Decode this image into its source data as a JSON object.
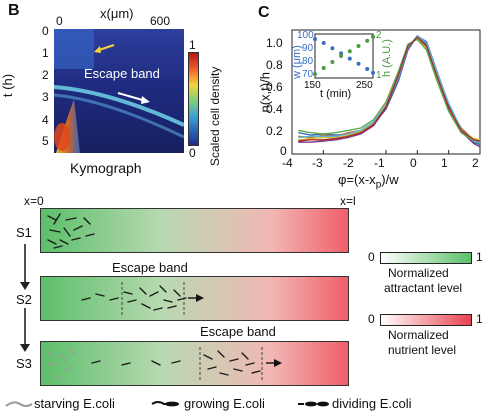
{
  "panel_b": {
    "letter": "B",
    "x_title": "x(μm)",
    "x_ticks": [
      "0",
      "600"
    ],
    "y_title": "t (h)",
    "y_ticks": [
      "0",
      "1",
      "2",
      "3",
      "4",
      "5"
    ],
    "annotation": "Escape band",
    "caption": "Kymograph",
    "colorbar_label": "Scaled cell density",
    "colorbar_ticks": [
      "1",
      "0"
    ]
  },
  "panel_c": {
    "letter": "C",
    "y_title": "n(x,t)/h",
    "x_title": "φ=(x-x",
    "x_title_sub": "p",
    "x_title_end": ")/w",
    "x_ticks": [
      "-4",
      "-3",
      "-2",
      "-1",
      "0",
      "1",
      "2"
    ],
    "y_ticks": [
      "1.0",
      "0.8",
      "0.6",
      "0.4",
      "0.2",
      "0"
    ],
    "inset": {
      "left_axis_title": "w (μm)",
      "left_ticks": [
        "100",
        "90",
        "80",
        "70"
      ],
      "right_axis_title": "h (A.U.)",
      "right_ticks": [
        "2",
        "1"
      ],
      "x_title": "t (min)",
      "x_ticks": [
        "150",
        "250"
      ]
    }
  },
  "schematic": {
    "x_start": "x=0",
    "x_end": "x=l",
    "stages": [
      "S1",
      "S2",
      "S3"
    ],
    "band_label_1": "Escape band",
    "band_label_2": "Escape band",
    "legend_attractant": {
      "min": "0",
      "max": "1",
      "label1": "Normalized",
      "label2": "attractant level",
      "color": "#5cbf6a"
    },
    "legend_nutrient": {
      "min": "0",
      "max": "1",
      "label1": "Normalized",
      "label2": "nutrient level",
      "color": "#e7434f"
    },
    "ecoli_legend": [
      "starving E.coli",
      "growing E.coli",
      "dividing E.coli"
    ]
  },
  "chart_data": {
    "type": "line",
    "xlabel": "φ=(x-xp)/w",
    "ylabel": "n(x,t)/h",
    "xlim": [
      -4,
      2
    ],
    "ylim": [
      0,
      1.05
    ],
    "x": [
      -3.8,
      -3.4,
      -3.0,
      -2.6,
      -2.2,
      -1.8,
      -1.4,
      -1.0,
      -0.6,
      -0.3,
      0.0,
      0.3,
      0.6,
      1.0,
      1.4,
      1.8,
      2.0
    ],
    "series": [
      {
        "color": "#3a6fc4",
        "values": [
          0.18,
          0.16,
          0.17,
          0.16,
          0.17,
          0.19,
          0.25,
          0.38,
          0.62,
          0.88,
          1.0,
          0.95,
          0.72,
          0.42,
          0.2,
          0.1,
          0.08
        ]
      },
      {
        "color": "#c9622a",
        "values": [
          0.15,
          0.14,
          0.16,
          0.15,
          0.18,
          0.2,
          0.27,
          0.4,
          0.66,
          0.9,
          0.99,
          0.92,
          0.7,
          0.4,
          0.22,
          0.12,
          0.1
        ]
      },
      {
        "color": "#e0b93a",
        "values": [
          0.12,
          0.13,
          0.14,
          0.14,
          0.16,
          0.19,
          0.26,
          0.42,
          0.68,
          0.92,
          0.98,
          0.9,
          0.66,
          0.38,
          0.2,
          0.13,
          0.12
        ]
      },
      {
        "color": "#7a3a8c",
        "values": [
          0.1,
          0.1,
          0.11,
          0.12,
          0.14,
          0.17,
          0.24,
          0.39,
          0.64,
          0.89,
          1.0,
          0.93,
          0.7,
          0.41,
          0.19,
          0.09,
          0.06
        ]
      },
      {
        "color": "#5aa84e",
        "values": [
          0.2,
          0.18,
          0.17,
          0.18,
          0.2,
          0.22,
          0.29,
          0.44,
          0.7,
          0.93,
          0.97,
          0.88,
          0.64,
          0.36,
          0.18,
          0.11,
          0.09
        ]
      },
      {
        "color": "#59b7d6",
        "values": [
          0.14,
          0.15,
          0.15,
          0.15,
          0.17,
          0.2,
          0.27,
          0.41,
          0.65,
          0.9,
          1.0,
          0.94,
          0.71,
          0.43,
          0.21,
          0.11,
          0.1
        ]
      },
      {
        "color": "#a8302c",
        "values": [
          0.11,
          0.12,
          0.12,
          0.13,
          0.15,
          0.18,
          0.25,
          0.4,
          0.67,
          0.91,
          0.99,
          0.91,
          0.68,
          0.39,
          0.2,
          0.12,
          0.11
        ]
      }
    ],
    "inset": {
      "type": "scatter",
      "xlabel": "t (min)",
      "xlim": [
        150,
        250
      ],
      "w_series": {
        "name": "w (μm)",
        "color": "#3a6fc4",
        "x": [
          150,
          165,
          180,
          195,
          210,
          225,
          240,
          250
        ],
        "values": [
          98,
          95,
          91,
          87,
          83,
          79,
          75,
          72
        ]
      },
      "h_series": {
        "name": "h (A.U.)",
        "color": "#4a9a3e",
        "x": [
          150,
          165,
          180,
          195,
          210,
          225,
          240,
          250
        ],
        "values": [
          1.05,
          1.2,
          1.35,
          1.5,
          1.62,
          1.75,
          1.88,
          1.98
        ]
      }
    }
  }
}
